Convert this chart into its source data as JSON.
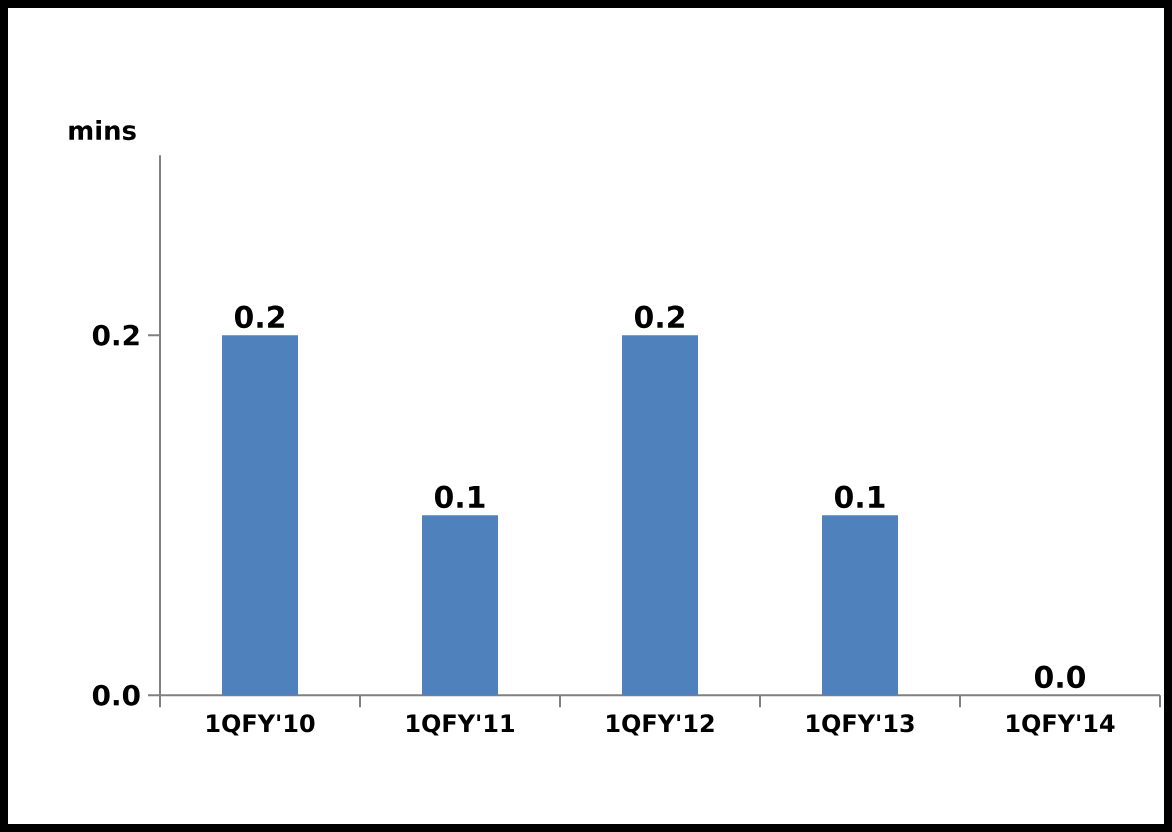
{
  "chart_data": {
    "type": "bar",
    "ylabel": "mins",
    "categories": [
      "1QFY'10",
      "1QFY'11",
      "1QFY'12",
      "1QFY'13",
      "1QFY'14"
    ],
    "values": [
      0.2,
      0.1,
      0.2,
      0.1,
      0.0
    ],
    "value_labels": [
      "0.2",
      "0.1",
      "0.2",
      "0.1",
      "0.0"
    ],
    "color": "#4f81bd",
    "ylim": [
      0,
      0.3
    ],
    "yticks": [
      {
        "value": 0,
        "label": "0.0"
      },
      {
        "value": 0.2,
        "label": "0.2"
      }
    ]
  }
}
